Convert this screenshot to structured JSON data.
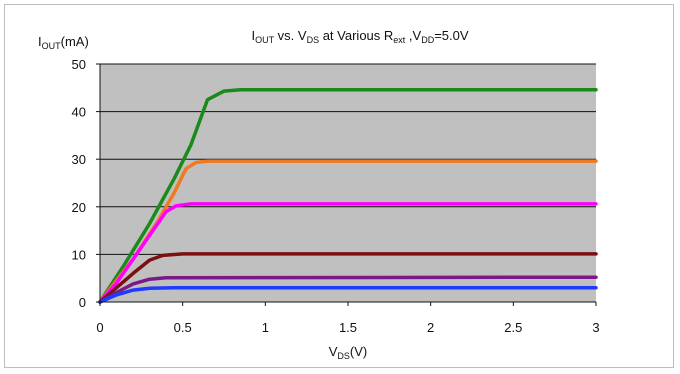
{
  "chart_data": {
    "type": "line",
    "title": {
      "main": "I",
      "main_sub": "OUT",
      "rest1": " vs. V",
      "rest1_sub": "DS",
      "rest2": " at Various R",
      "rest2_sub": "ext",
      "rest3": " ,V",
      "rest3_sub": "DD",
      "rest4": "=5.0V"
    },
    "ylabel": {
      "main": "I",
      "sub": "OUT",
      "unit": "(mA)"
    },
    "xlabel": {
      "main": "V",
      "sub": "DS",
      "unit": "(V)"
    },
    "xlim": [
      0,
      3
    ],
    "ylim": [
      0,
      50
    ],
    "xticks": [
      "0",
      "0.5",
      "1",
      "1.5",
      "2",
      "2.5",
      "3"
    ],
    "yticks": [
      "0",
      "10",
      "20",
      "30",
      "40",
      "50"
    ],
    "grid": "horizontal",
    "plot_background": "#c0c0c0",
    "series": [
      {
        "color": "#1a8a1a",
        "points": [
          [
            0,
            0
          ],
          [
            0.15,
            8
          ],
          [
            0.3,
            16.5
          ],
          [
            0.45,
            26
          ],
          [
            0.55,
            33
          ],
          [
            0.65,
            42.5
          ],
          [
            0.75,
            44.3
          ],
          [
            0.85,
            44.6
          ],
          [
            3,
            44.6
          ]
        ]
      },
      {
        "color": "#f07a20",
        "points": [
          [
            0,
            0
          ],
          [
            0.2,
            9
          ],
          [
            0.35,
            17
          ],
          [
            0.45,
            23
          ],
          [
            0.52,
            28
          ],
          [
            0.58,
            29.3
          ],
          [
            0.65,
            29.6
          ],
          [
            3,
            29.6
          ]
        ]
      },
      {
        "color": "#ff00ff",
        "points": [
          [
            0,
            0
          ],
          [
            0.1,
            4
          ],
          [
            0.2,
            9
          ],
          [
            0.3,
            14
          ],
          [
            0.4,
            19
          ],
          [
            0.46,
            20.2
          ],
          [
            0.55,
            20.6
          ],
          [
            3,
            20.6
          ]
        ]
      },
      {
        "color": "#7a1010",
        "points": [
          [
            0,
            0
          ],
          [
            0.1,
            3
          ],
          [
            0.2,
            6
          ],
          [
            0.3,
            8.8
          ],
          [
            0.38,
            9.8
          ],
          [
            0.5,
            10.1
          ],
          [
            3,
            10.1
          ]
        ]
      },
      {
        "color": "#7a1a8a",
        "points": [
          [
            0,
            0
          ],
          [
            0.1,
            2
          ],
          [
            0.2,
            3.8
          ],
          [
            0.3,
            4.8
          ],
          [
            0.4,
            5.1
          ],
          [
            3,
            5.2
          ]
        ]
      },
      {
        "color": "#1e3cff",
        "points": [
          [
            0,
            0
          ],
          [
            0.1,
            1.5
          ],
          [
            0.2,
            2.5
          ],
          [
            0.3,
            2.9
          ],
          [
            0.45,
            3.0
          ],
          [
            3,
            3.0
          ]
        ]
      }
    ]
  }
}
